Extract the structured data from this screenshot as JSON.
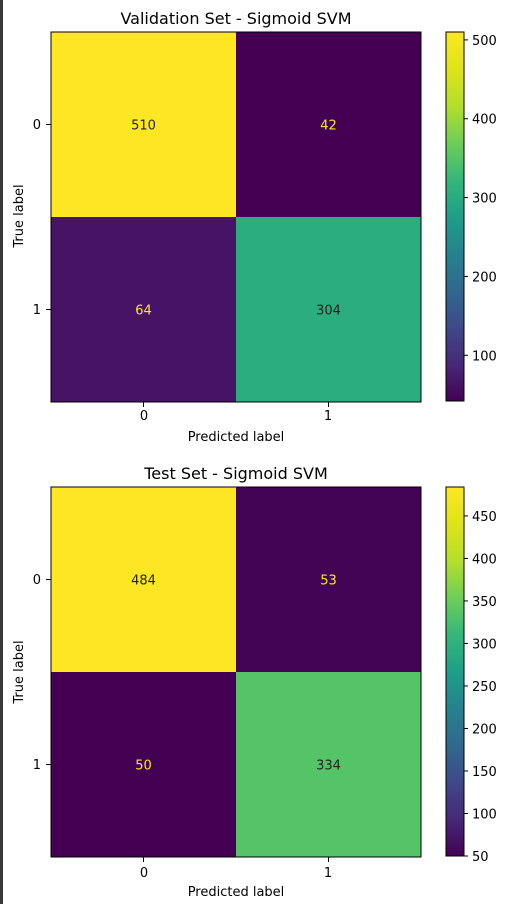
{
  "chart_data": [
    {
      "type": "heatmap",
      "title": "Validation Set - Sigmoid SVM",
      "xlabel": "Predicted label",
      "ylabel": "True label",
      "x_categories": [
        "0",
        "1"
      ],
      "y_categories": [
        "0",
        "1"
      ],
      "values": [
        [
          510,
          42
        ],
        [
          64,
          304
        ]
      ],
      "colormap": "viridis",
      "colorbar": {
        "min": 42,
        "max": 510,
        "ticks": [
          "100",
          "200",
          "300",
          "400",
          "500"
        ]
      }
    },
    {
      "type": "heatmap",
      "title": "Test Set - Sigmoid SVM",
      "xlabel": "Predicted label",
      "ylabel": "True label",
      "x_categories": [
        "0",
        "1"
      ],
      "y_categories": [
        "0",
        "1"
      ],
      "values": [
        [
          484,
          53
        ],
        [
          50,
          334
        ]
      ],
      "colormap": "viridis",
      "colorbar": {
        "min": 50,
        "max": 484,
        "ticks": [
          "50",
          "100",
          "150",
          "200",
          "250",
          "300",
          "350",
          "400",
          "450"
        ]
      }
    }
  ]
}
